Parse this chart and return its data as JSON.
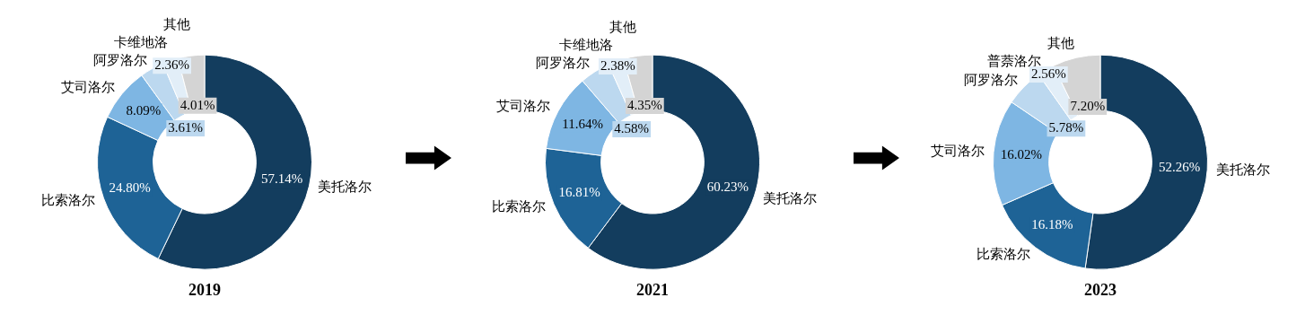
{
  "chart_data": [
    {
      "type": "donut",
      "title": "2019",
      "categories": [
        "美托洛尔",
        "比索洛尔",
        "艾司洛尔",
        "阿罗洛尔",
        "卡维地洛",
        "其他"
      ],
      "values": [
        57.14,
        24.8,
        8.09,
        3.61,
        2.36,
        4.01
      ],
      "data_labels": true,
      "value_labels": [
        "57.14%",
        "24.80%",
        "8.09%",
        "3.61%",
        "2.36%",
        "4.01%"
      ],
      "colors": [
        "#133d5e",
        "#1e6396",
        "#7eb6e3",
        "#bcd8ef",
        "#e2eef8",
        "#d4d4d4"
      ],
      "legend": false
    },
    {
      "type": "donut",
      "title": "2021",
      "categories": [
        "美托洛尔",
        "比索洛尔",
        "艾司洛尔",
        "阿罗洛尔",
        "卡维地洛",
        "其他"
      ],
      "values": [
        60.23,
        16.81,
        11.64,
        4.58,
        2.38,
        4.35
      ],
      "data_labels": true,
      "value_labels": [
        "60.23%",
        "16.81%",
        "11.64%",
        "4.58%",
        "2.38%",
        "4.35%"
      ],
      "colors": [
        "#133d5e",
        "#1e6396",
        "#7eb6e3",
        "#bcd8ef",
        "#e2eef8",
        "#d4d4d4"
      ],
      "legend": false
    },
    {
      "type": "donut",
      "title": "2023",
      "categories": [
        "美托洛尔",
        "比索洛尔",
        "艾司洛尔",
        "阿罗洛尔",
        "普萘洛尔",
        "其他"
      ],
      "values": [
        52.26,
        16.18,
        16.02,
        5.78,
        2.56,
        7.2
      ],
      "data_labels": true,
      "value_labels": [
        "52.26%",
        "16.18%",
        "16.02%",
        "5.78%",
        "2.56%",
        "7.20%"
      ],
      "colors": [
        "#133d5e",
        "#1e6396",
        "#7eb6e3",
        "#bcd8ef",
        "#e2eef8",
        "#d4d4d4"
      ],
      "legend": false
    }
  ]
}
